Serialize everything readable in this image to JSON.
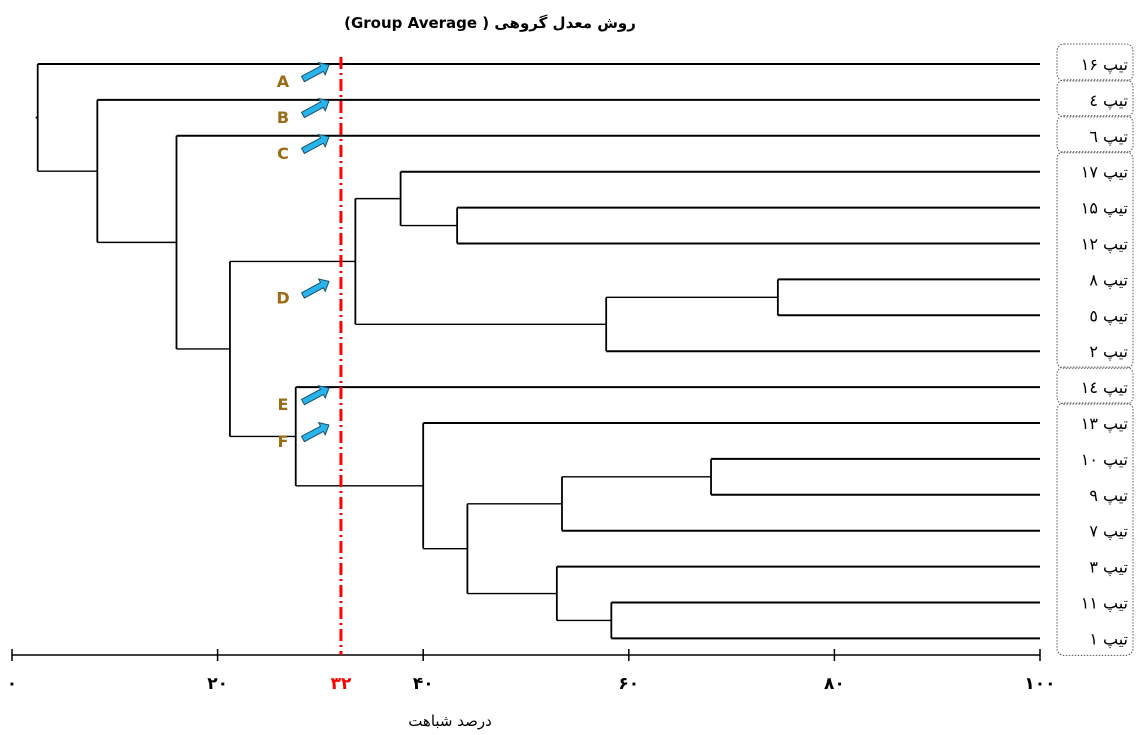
{
  "title": "روش معدل گروهی ( Group Average)",
  "xlabel": "درصد شباهت",
  "colors": {
    "line": "#000000",
    "cutoff": "#ff0000",
    "arrow": "#27b4ea",
    "letter": "#9c6b16",
    "box_border": "#555555"
  },
  "chart_data": {
    "type": "dendrogram",
    "axis": {
      "min": 0,
      "max": 100,
      "direction": "similarity",
      "ticks": [
        "۰",
        "۲۰",
        "۴۰",
        "۶۰",
        "۸۰",
        "۱۰۰"
      ],
      "tick_values": [
        0,
        20,
        40,
        60,
        80,
        100
      ]
    },
    "cutoff": {
      "value": 32,
      "label": "۳۲"
    },
    "leaves": [
      "تیپ ۱۶",
      "تیپ ٤",
      "تیپ ٦",
      "تیپ ۱۷",
      "تیپ ۱۵",
      "تیپ ۱۲",
      "تیپ ۸",
      "تیپ ٥",
      "تیپ ۲",
      "تیپ ١٤",
      "تیپ ۱۳",
      "تیپ ۱۰",
      "تیپ ۹",
      "تیپ ۷",
      "تیپ ۳",
      "تیپ ۱۱",
      "تیپ ۱"
    ],
    "leaf_groups": [
      [
        0
      ],
      [
        1
      ],
      [
        2
      ],
      [
        3,
        8
      ],
      [
        9
      ],
      [
        10,
        16
      ]
    ],
    "merges": [
      {
        "id": "m1",
        "children": [
          "L6",
          "L7"
        ],
        "similarity": 74.5
      },
      {
        "id": "m2",
        "children": [
          "m1",
          "L8"
        ],
        "similarity": 57.8
      },
      {
        "id": "m3",
        "children": [
          "L4",
          "L5"
        ],
        "similarity": 43.3
      },
      {
        "id": "m4",
        "children": [
          "L3",
          "m3"
        ],
        "similarity": 37.8
      },
      {
        "id": "m5",
        "children": [
          "m4",
          "m2"
        ],
        "similarity": 33.4
      },
      {
        "id": "m6",
        "children": [
          "L11",
          "L12"
        ],
        "similarity": 68.0
      },
      {
        "id": "m7",
        "children": [
          "m6",
          "L13"
        ],
        "similarity": 53.5
      },
      {
        "id": "m8",
        "children": [
          "L15",
          "L16"
        ],
        "similarity": 58.3
      },
      {
        "id": "m9",
        "children": [
          "L14",
          "m8"
        ],
        "similarity": 53.0
      },
      {
        "id": "m10",
        "children": [
          "m7",
          "m9"
        ],
        "similarity": 44.3
      },
      {
        "id": "m11",
        "children": [
          "m10",
          "L10"
        ],
        "similarity": 40.0
      },
      {
        "id": "m12",
        "children": [
          "L9",
          "m11"
        ],
        "similarity": 27.6
      },
      {
        "id": "m13",
        "children": [
          "m5",
          "m12"
        ],
        "similarity": 21.2
      },
      {
        "id": "m14",
        "children": [
          "L2",
          "m13"
        ],
        "similarity": 16.0
      },
      {
        "id": "m15",
        "children": [
          "L1",
          "m14"
        ],
        "similarity": 8.3
      },
      {
        "id": "m16",
        "children": [
          "L0",
          "m15"
        ],
        "similarity": 2.5
      }
    ],
    "annotations": [
      {
        "label": "A",
        "leaf": 0
      },
      {
        "label": "B",
        "leaf": 1
      },
      {
        "label": "C",
        "leaf": 2
      },
      {
        "label": "D",
        "leaf": 6
      },
      {
        "label": "E",
        "leaf": 9
      },
      {
        "label": "F",
        "leaf": 10
      }
    ]
  }
}
